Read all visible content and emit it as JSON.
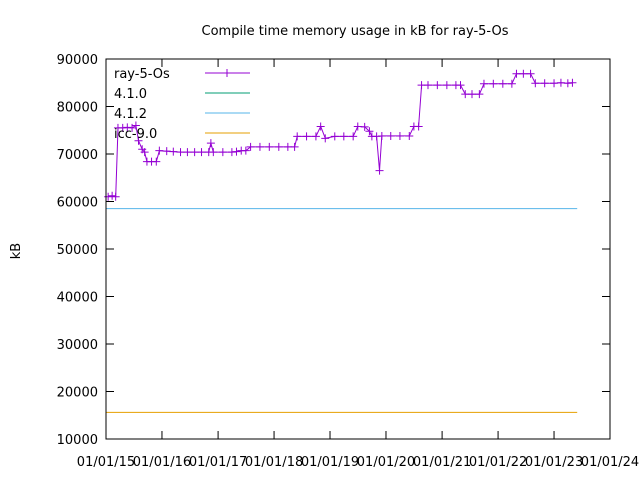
{
  "chart_data": {
    "type": "line",
    "title": "Compile time memory usage in kB for ray-5-Os",
    "xlabel": "",
    "ylabel": "kB",
    "x_type": "date",
    "xlim": [
      "2015-01-01",
      "2024-01-01"
    ],
    "ylim": [
      10000,
      90000
    ],
    "x_ticks": [
      "01/01/15",
      "01/01/16",
      "01/01/17",
      "01/01/18",
      "01/01/19",
      "01/01/20",
      "01/01/21",
      "01/01/22",
      "01/01/23",
      "01/01/24"
    ],
    "x_tick_dates": [
      "2015-01-01",
      "2016-01-01",
      "2017-01-01",
      "2018-01-01",
      "2019-01-01",
      "2020-01-01",
      "2021-01-01",
      "2022-01-01",
      "2023-01-01",
      "2024-01-01"
    ],
    "y_ticks": [
      10000,
      20000,
      30000,
      40000,
      50000,
      60000,
      70000,
      80000,
      90000
    ],
    "y_tick_labels": [
      "10000",
      "20000",
      "30000",
      "40000",
      "50000",
      "60000",
      "70000",
      "80000",
      "90000"
    ],
    "grid": false,
    "legend_position": "top-left",
    "series": [
      {
        "name": "ray-5-Os",
        "color": "#9400d3",
        "marker": "plus",
        "points": [
          [
            "2015-01-15",
            61000
          ],
          [
            "2015-02-10",
            61200
          ],
          [
            "2015-03-05",
            61000
          ],
          [
            "2015-03-20",
            75500
          ],
          [
            "2015-04-20",
            75500
          ],
          [
            "2015-05-20",
            75600
          ],
          [
            "2015-06-20",
            75500
          ],
          [
            "2015-07-15",
            76000
          ],
          [
            "2015-08-01",
            72800
          ],
          [
            "2015-08-25",
            71000
          ],
          [
            "2015-09-10",
            70400
          ],
          [
            "2015-09-25",
            68400
          ],
          [
            "2015-10-25",
            68400
          ],
          [
            "2015-11-25",
            68400
          ],
          [
            "2015-12-15",
            70700
          ],
          [
            "2016-02-01",
            70600
          ],
          [
            "2016-03-15",
            70500
          ],
          [
            "2016-05-01",
            70400
          ],
          [
            "2016-06-15",
            70400
          ],
          [
            "2016-08-01",
            70400
          ],
          [
            "2016-09-15",
            70400
          ],
          [
            "2016-11-01",
            70400
          ],
          [
            "2016-11-15",
            72300
          ],
          [
            "2016-12-01",
            70400
          ],
          [
            "2017-02-01",
            70400
          ],
          [
            "2017-04-01",
            70400
          ],
          [
            "2017-05-01",
            70500
          ],
          [
            "2017-06-01",
            70700
          ],
          [
            "2017-07-01",
            70700
          ],
          [
            "2017-08-01",
            71500
          ],
          [
            "2017-10-01",
            71500
          ],
          [
            "2017-12-01",
            71500
          ],
          [
            "2018-02-01",
            71500
          ],
          [
            "2018-04-01",
            71500
          ],
          [
            "2018-05-15",
            71500
          ],
          [
            "2018-06-01",
            73700
          ],
          [
            "2018-08-01",
            73700
          ],
          [
            "2018-10-01",
            73700
          ],
          [
            "2018-11-01",
            75800
          ],
          [
            "2018-12-01",
            73300
          ],
          [
            "2019-02-01",
            73700
          ],
          [
            "2019-04-01",
            73700
          ],
          [
            "2019-06-01",
            73700
          ],
          [
            "2019-07-01",
            75800
          ],
          [
            "2019-08-15",
            75700
          ],
          [
            "2019-09-15",
            74800
          ],
          [
            "2019-10-01",
            73700
          ],
          [
            "2019-11-01",
            73700
          ],
          [
            "2019-11-20",
            66500
          ],
          [
            "2019-12-05",
            73800
          ],
          [
            "2020-02-01",
            73800
          ],
          [
            "2020-04-01",
            73800
          ],
          [
            "2020-06-01",
            73800
          ],
          [
            "2020-07-01",
            75800
          ],
          [
            "2020-08-01",
            75800
          ],
          [
            "2020-08-20",
            84500
          ],
          [
            "2020-10-01",
            84500
          ],
          [
            "2020-12-01",
            84500
          ],
          [
            "2021-02-01",
            84500
          ],
          [
            "2021-04-01",
            84500
          ],
          [
            "2021-05-01",
            84500
          ],
          [
            "2021-06-01",
            82600
          ],
          [
            "2021-07-15",
            82600
          ],
          [
            "2021-09-01",
            82600
          ],
          [
            "2021-10-01",
            84800
          ],
          [
            "2021-12-01",
            84800
          ],
          [
            "2022-02-01",
            84800
          ],
          [
            "2022-04-01",
            84800
          ],
          [
            "2022-05-01",
            86900
          ],
          [
            "2022-06-15",
            86900
          ],
          [
            "2022-08-01",
            86900
          ],
          [
            "2022-09-01",
            84900
          ],
          [
            "2022-11-01",
            84900
          ],
          [
            "2023-01-01",
            84900
          ],
          [
            "2023-02-15",
            85000
          ],
          [
            "2023-04-01",
            84900
          ],
          [
            "2023-05-01",
            85000
          ]
        ]
      },
      {
        "name": "4.1.0",
        "color": "#009e73",
        "marker": "none",
        "points": []
      },
      {
        "name": "4.1.2",
        "color": "#56b4e9",
        "marker": "none",
        "points": [
          [
            "2015-01-01",
            58500
          ],
          [
            "2023-06-01",
            58500
          ]
        ]
      },
      {
        "name": "icc-9.0",
        "color": "#e69f00",
        "marker": "none",
        "points": [
          [
            "2015-01-01",
            15600
          ],
          [
            "2023-06-01",
            15600
          ]
        ]
      }
    ]
  }
}
